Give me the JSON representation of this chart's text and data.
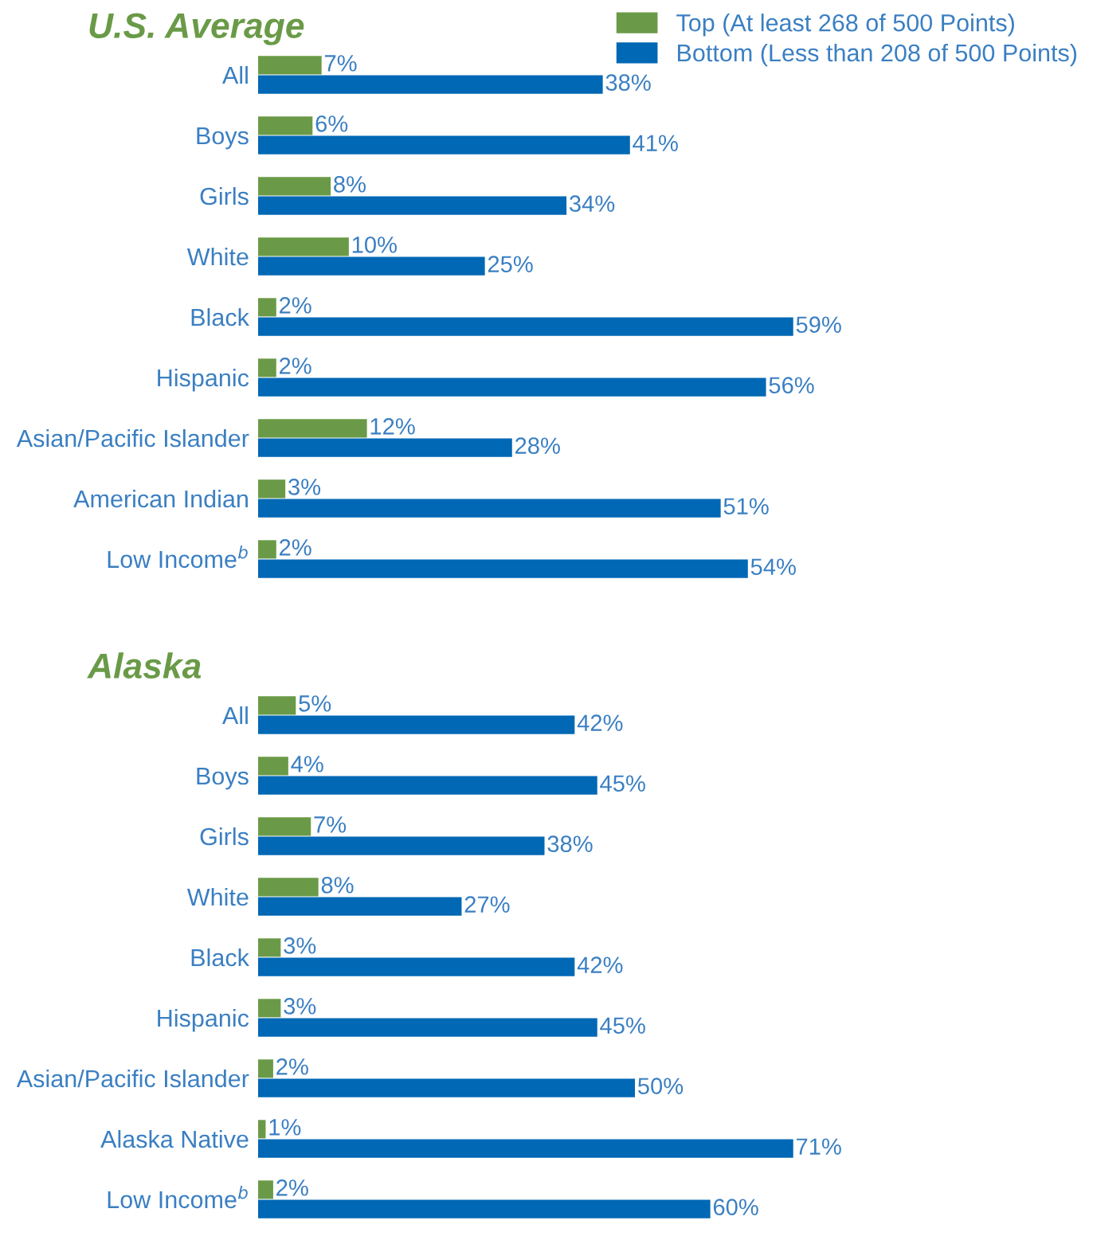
{
  "chart_data": [
    {
      "type": "bar",
      "orientation": "horizontal",
      "title": "U.S. Average",
      "categories": [
        "All",
        "Boys",
        "Girls",
        "White",
        "Black",
        "Hispanic",
        "Asian/Pacific Islander",
        "American Indian",
        "Low Income$^{b}$"
      ],
      "series": [
        {
          "name": "Top (At least 268 of 500 Points)",
          "color": "#6a9a47",
          "values": [
            7,
            6,
            8,
            10,
            2,
            2,
            12,
            3,
            2
          ],
          "value_labels": [
            "7%",
            "6%",
            "8%",
            "10%",
            "2%",
            "2%",
            "12%",
            "3%",
            "2%"
          ]
        },
        {
          "name": "Bottom (Less than 208 of 500 Points)",
          "color": "#0068b5",
          "values": [
            38,
            41,
            34,
            25,
            59,
            56,
            28,
            51,
            54
          ],
          "value_labels": [
            "38%",
            "41%",
            "34%",
            "25%",
            "59%",
            "56%",
            "28%",
            "51%",
            "54%"
          ]
        }
      ],
      "tick_labels": "y",
      "legend": "top right",
      "grid": false
    },
    {
      "type": "bar",
      "orientation": "horizontal",
      "title": "Alaska",
      "categories": [
        "All",
        "Boys",
        "Girls",
        "White",
        "Black",
        "Hispanic",
        "Asian/Pacific Islander",
        "Alaska Native",
        "Low Income$^{b}$"
      ],
      "series": [
        {
          "color": "#6a9a47",
          "values": [
            5,
            4,
            7,
            8,
            3,
            3,
            2,
            1,
            2
          ],
          "value_labels": [
            "5%",
            "4%",
            "7%",
            "8%",
            "3%",
            "3%",
            "2%",
            "1%",
            "2%"
          ]
        },
        {
          "color": "#0068b5",
          "values": [
            42,
            45,
            38,
            27,
            42,
            45,
            50,
            71,
            60
          ],
          "value_labels": [
            "42%",
            "45%",
            "38%",
            "27%",
            "42%",
            "45%",
            "50%",
            "71%",
            "60%"
          ]
        }
      ],
      "tick_labels": "y",
      "grid": false
    }
  ]
}
